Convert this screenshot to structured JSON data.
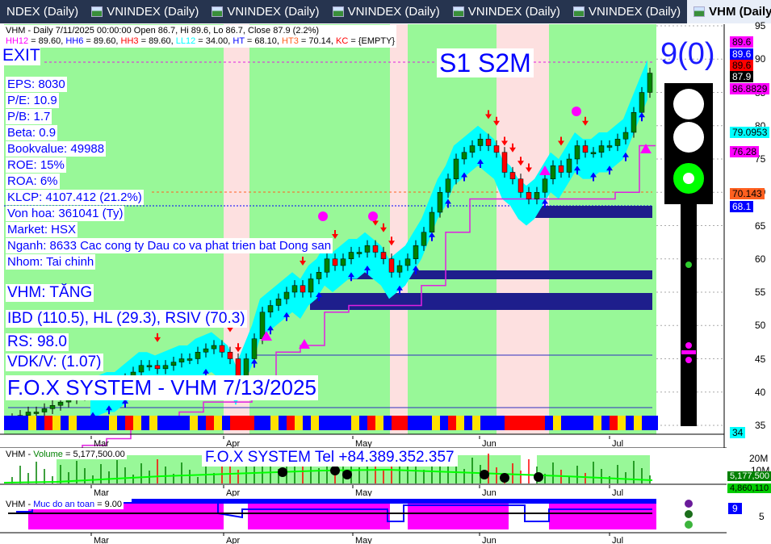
{
  "tabs": [
    {
      "label": "NDEX (Daily)"
    },
    {
      "label": "VNINDEX (Daily)"
    },
    {
      "label": "VNINDEX (Daily)"
    },
    {
      "label": "VNINDEX (Daily)"
    },
    {
      "label": "VNINDEX (Daily)"
    },
    {
      "label": "VNINDEX (Daily)"
    },
    {
      "label": "VHM (Daily)",
      "active": true
    }
  ],
  "header": {
    "line1": "VHM - Daily 7/11/2025 00:00:00 Open 86.7, Hi 89.6, Lo 86.7, Close 87.9 (2.2%)",
    "indicators": [
      {
        "name": "HH12",
        "val": " = 89.60, ",
        "color": "#ff00ff"
      },
      {
        "name": "HH6",
        "val": " = 89.60, ",
        "color": "#0000ff"
      },
      {
        "name": "HH3",
        "val": " = 89.60, ",
        "color": "#ff0000"
      },
      {
        "name": "LL12",
        "val": " = 34.00, ",
        "color": "#00ffff"
      },
      {
        "name": "HT",
        "val": "  = 68.10, ",
        "color": "#0000ff"
      },
      {
        "name": "HT3",
        "val": "  = 70.14, ",
        "color": "#ff6020"
      },
      {
        "name": "KC",
        "val": " = {EMPTY}",
        "color": "#ff0000"
      }
    ]
  },
  "overlay": {
    "exit": "EXIT",
    "signal": "S1  S2M",
    "score": "9(0)",
    "fundamentals": [
      "EPS: 8030",
      "P/E: 10.9",
      "P/B: 1.7",
      "Beta: 0.9",
      "Bookvalue: 49988",
      "ROE: 15%",
      "ROA: 6%",
      "KLCP: 4107.412 (21.2%)",
      "Von hoa: 361041 (Ty)",
      "Market: HSX",
      "Nganh: 8633 Cac cong ty Dau co va phat trien bat Dong san",
      "Nhom: Tai chinh"
    ],
    "trend": "VHM: TĂNG",
    "ibd": "IBD (110.5), HL (29.3), RSIV (70.3)",
    "rs": "RS: 98.0",
    "vdk": "VDK/V:  (1.07)",
    "system": "F.O.X SYSTEM - VHM 7/13/2025"
  },
  "price_axis": {
    "ticks": [
      "95",
      "90",
      "85",
      "80",
      "75",
      "70",
      "65",
      "60",
      "55",
      "50",
      "45",
      "40",
      "35"
    ],
    "tags": [
      {
        "v": "89.6",
        "bg": "#ff00ff",
        "fg": "#000"
      },
      {
        "v": "89.6",
        "bg": "#0000ff",
        "fg": "#fff"
      },
      {
        "v": "89.6",
        "bg": "#ff0000",
        "fg": "#000"
      },
      {
        "v": "87.9",
        "bg": "#000",
        "fg": "#fff"
      },
      {
        "v": "86.8829",
        "bg": "#ff00ff",
        "fg": "#000"
      },
      {
        "v": "79.0953",
        "bg": "#00ffff",
        "fg": "#000"
      },
      {
        "v": "76.28",
        "bg": "#ff00ff",
        "fg": "#000"
      },
      {
        "v": "70.143",
        "bg": "#ff6020",
        "fg": "#000"
      },
      {
        "v": "68.1",
        "bg": "#0000ff",
        "fg": "#fff"
      },
      {
        "v": "34",
        "bg": "#00ffff",
        "fg": "#000"
      }
    ]
  },
  "months": [
    "Mar",
    "Apr",
    "May",
    "Jun",
    "Jul"
  ],
  "traffic_light": {
    "active": "green"
  },
  "chart_data": {
    "type": "candlestick",
    "title": "VHM - Daily",
    "ylim": [
      35,
      95
    ],
    "close": [
      36,
      36.5,
      37,
      37,
      37.5,
      38,
      38.5,
      39,
      39.5,
      40,
      40,
      40.5,
      41,
      41,
      42,
      43,
      44,
      44,
      43.5,
      44,
      44.5,
      45,
      45,
      46,
      46.5,
      47,
      46,
      45,
      42,
      45,
      48,
      52,
      53,
      54,
      55,
      56,
      55,
      57,
      58,
      60,
      59,
      60,
      61,
      61,
      62,
      61,
      60,
      58,
      59,
      60,
      62,
      64,
      67,
      70,
      72,
      75,
      76,
      77,
      78,
      77,
      76,
      73,
      72,
      70,
      69,
      70,
      72,
      74,
      73,
      75,
      77,
      76,
      76,
      77,
      77,
      78,
      79,
      82,
      85,
      87.9
    ]
  },
  "volume": {
    "label": "VHM",
    "name": "Volume",
    "value": " = 5,177,500.00",
    "banner": "F.O.X SYSTEM Tel +84.389.352.357",
    "ticks": [
      "20M",
      "10M"
    ],
    "tags": [
      "5,177,500",
      "4,860,110"
    ]
  },
  "safety": {
    "label": "VHM",
    "name": "Muc do an toan",
    "value": " = 9.00",
    "tag": "9",
    "tick": "5"
  },
  "colors": {
    "bg_green": "#98f898",
    "pink_band": "#fde0e0",
    "up": "#008000",
    "down": "#ff0000",
    "zone": "#1e1e8c"
  }
}
